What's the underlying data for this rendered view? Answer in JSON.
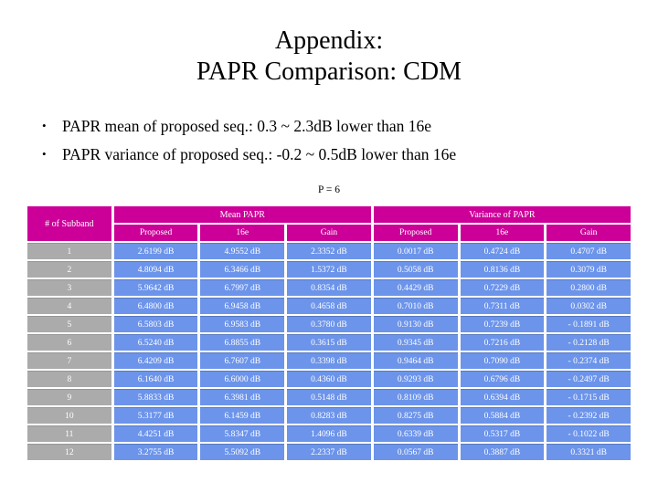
{
  "title": {
    "line1": "Appendix:",
    "line2": "PAPR Comparison: CDM"
  },
  "bullets": [
    "PAPR mean of proposed seq.: 0.3 ~ 2.3dB lower than 16e",
    "PAPR variance of proposed seq.: -0.2 ~ 0.5dB lower than 16e"
  ],
  "colors": {
    "header_bg": "#cc0099",
    "subband_bg": "#ababab",
    "cell_bg": "#6c94ea",
    "cell_text": "#ffffff"
  },
  "table": {
    "caption": "P = 6",
    "subband_header": "# of Subband",
    "groups": [
      "Mean PAPR",
      "Variance of PAPR"
    ],
    "sub_headers": [
      "Proposed",
      "16e",
      "Gain",
      "Proposed",
      "16e",
      "Gain"
    ],
    "rows": [
      [
        "1",
        "2.6199 dB",
        "4.9552 dB",
        "2.3352 dB",
        "0.0017 dB",
        "0.4724 dB",
        "0.4707 dB"
      ],
      [
        "2",
        "4.8094 dB",
        "6.3466 dB",
        "1.5372 dB",
        "0.5058 dB",
        "0.8136 dB",
        "0.3079 dB"
      ],
      [
        "3",
        "5.9642 dB",
        "6.7997 dB",
        "0.8354 dB",
        "0.4429 dB",
        "0.7229 dB",
        "0.2800 dB"
      ],
      [
        "4",
        "6.4800 dB",
        "6.9458 dB",
        "0.4658 dB",
        "0.7010 dB",
        "0.7311 dB",
        "0.0302 dB"
      ],
      [
        "5",
        "6.5803 dB",
        "6.9583 dB",
        "0.3780 dB",
        "0.9130 dB",
        "0.7239 dB",
        "- 0.1891 dB"
      ],
      [
        "6",
        "6.5240 dB",
        "6.8855 dB",
        "0.3615 dB",
        "0.9345 dB",
        "0.7216 dB",
        "- 0.2128 dB"
      ],
      [
        "7",
        "6.4209 dB",
        "6.7607 dB",
        "0.3398 dB",
        "0.9464 dB",
        "0.7090 dB",
        "- 0.2374 dB"
      ],
      [
        "8",
        "6.1640 dB",
        "6.6000 dB",
        "0.4360 dB",
        "0.9293 dB",
        "0.6796 dB",
        "- 0.2497 dB"
      ],
      [
        "9",
        "5.8833 dB",
        "6.3981 dB",
        "0.5148 dB",
        "0.8109 dB",
        "0.6394 dB",
        "- 0.1715 dB"
      ],
      [
        "10",
        "5.3177 dB",
        "6.1459 dB",
        "0.8283 dB",
        "0.8275 dB",
        "0.5884 dB",
        "- 0.2392 dB"
      ],
      [
        "11",
        "4.4251 dB",
        "5.8347 dB",
        "1.4096 dB",
        "0.6339 dB",
        "0.5317 dB",
        "- 0.1022 dB"
      ],
      [
        "12",
        "3.2755 dB",
        "5.5092 dB",
        "2.2337 dB",
        "0.0567 dB",
        "0.3887 dB",
        "0.3321 dB"
      ]
    ]
  }
}
